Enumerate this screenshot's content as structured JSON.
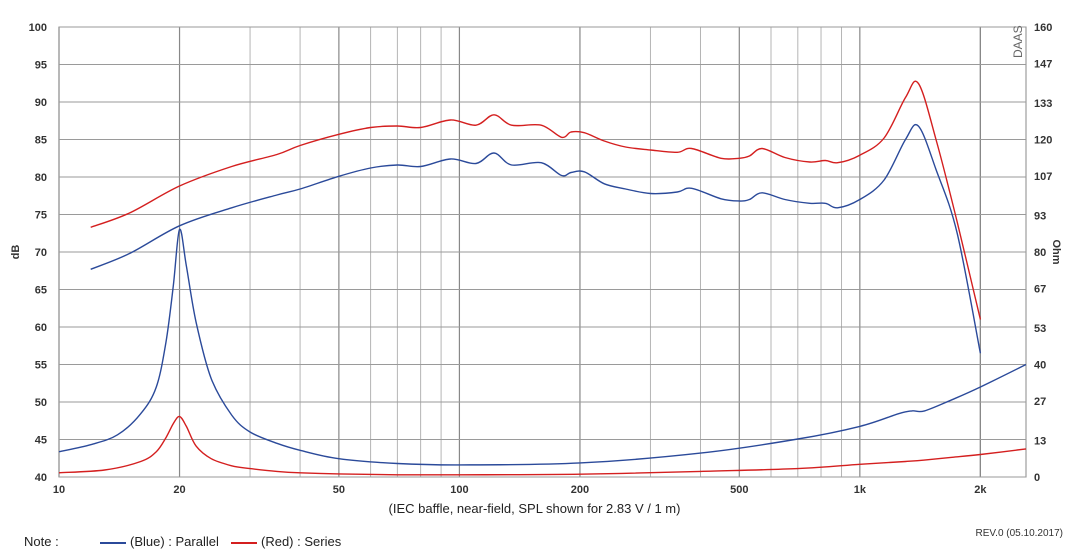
{
  "chart_data": {
    "type": "line",
    "xscale": "log",
    "xlim": [
      10,
      2600
    ],
    "ylim_left": [
      40,
      100
    ],
    "ylim_right": [
      0,
      160
    ],
    "ylabel_left": "dB",
    "ylabel_right": "Ohm",
    "grid": true,
    "watermark": "DAAS",
    "x_ticks": [
      {
        "value": 10,
        "label": "10"
      },
      {
        "value": 20,
        "label": "20"
      },
      {
        "value": 50,
        "label": "50"
      },
      {
        "value": 100,
        "label": "100"
      },
      {
        "value": 200,
        "label": "200"
      },
      {
        "value": 500,
        "label": "500"
      },
      {
        "value": 1000,
        "label": "1k"
      },
      {
        "value": 2000,
        "label": "2k"
      }
    ],
    "y_ticks_left": [
      "40",
      "45",
      "50",
      "55",
      "60",
      "65",
      "70",
      "75",
      "80",
      "85",
      "90",
      "95",
      "100"
    ],
    "y_ticks_right": [
      {
        "value": 0,
        "label": "0"
      },
      {
        "value": 13,
        "label": "13"
      },
      {
        "value": 27,
        "label": "27"
      },
      {
        "value": 40,
        "label": "40"
      },
      {
        "value": 53,
        "label": "53"
      },
      {
        "value": 67,
        "label": "67"
      },
      {
        "value": 80,
        "label": "80"
      },
      {
        "value": 93,
        "label": "93"
      },
      {
        "value": 107,
        "label": "107"
      },
      {
        "value": 120,
        "label": "120"
      },
      {
        "value": 133,
        "label": "133"
      },
      {
        "value": 147,
        "label": "147"
      },
      {
        "value": 160,
        "label": "160"
      }
    ],
    "series": [
      {
        "kind": "spl",
        "color": "#2b4a9a",
        "axis": "left",
        "x": [
          12,
          15,
          20,
          27,
          35,
          40,
          50,
          60,
          70,
          80,
          95,
          110,
          122,
          135,
          160,
          180,
          190,
          205,
          230,
          260,
          300,
          350,
          380,
          450,
          500,
          530,
          570,
          650,
          750,
          820,
          880,
          1000,
          1150,
          1300,
          1400,
          1550,
          1750,
          2000
        ],
        "y": [
          67.7,
          69.8,
          73.5,
          75.9,
          77.6,
          78.4,
          80.1,
          81.2,
          81.6,
          81.4,
          82.4,
          81.8,
          83.2,
          81.6,
          81.9,
          80.2,
          80.6,
          80.7,
          79.1,
          78.4,
          77.8,
          78.0,
          78.5,
          77.1,
          76.8,
          77.0,
          77.9,
          77.0,
          76.5,
          76.5,
          75.9,
          77.0,
          79.6,
          85.0,
          86.8,
          81.0,
          72.5,
          56.5
        ]
      },
      {
        "kind": "spl",
        "color": "#d41f1f",
        "axis": "left",
        "x": [
          12,
          15,
          20,
          27,
          35,
          40,
          50,
          60,
          70,
          80,
          95,
          110,
          122,
          135,
          160,
          180,
          190,
          205,
          230,
          260,
          300,
          350,
          380,
          450,
          500,
          530,
          570,
          650,
          750,
          820,
          880,
          1000,
          1150,
          1300,
          1400,
          1550,
          1750,
          2000
        ],
        "y": [
          73.3,
          75.2,
          78.8,
          81.4,
          83.0,
          84.2,
          85.7,
          86.6,
          86.8,
          86.6,
          87.6,
          86.9,
          88.3,
          86.9,
          86.9,
          85.3,
          86.0,
          85.9,
          84.8,
          84.0,
          83.6,
          83.3,
          83.8,
          82.5,
          82.5,
          82.8,
          83.8,
          82.6,
          82.0,
          82.2,
          81.9,
          82.9,
          85.2,
          90.6,
          92.5,
          85.0,
          74.0,
          61.0
        ]
      },
      {
        "kind": "impedance",
        "color": "#2b4a9a",
        "axis": "right",
        "x": [
          10,
          12,
          14,
          16,
          17.5,
          18.5,
          19.3,
          20,
          20.8,
          22,
          24,
          27,
          30,
          35,
          40,
          50,
          70,
          100,
          200,
          400,
          700,
          1000,
          1250,
          1350,
          1450,
          1700,
          2000,
          2600
        ],
        "y": [
          9,
          11.5,
          15,
          22.5,
          32,
          48,
          68,
          88,
          75,
          55,
          35,
          22,
          16,
          12,
          9.5,
          6.5,
          4.8,
          4.3,
          5,
          8.5,
          13.5,
          18,
          22.5,
          23.5,
          23.5,
          27.5,
          32,
          40
        ]
      },
      {
        "kind": "impedance",
        "color": "#d41f1f",
        "axis": "right",
        "x": [
          10,
          13,
          16,
          17.5,
          18.5,
          19.3,
          20,
          20.8,
          22,
          24,
          27,
          30,
          35,
          40,
          50,
          70,
          100,
          200,
          400,
          700,
          1000,
          1300,
          1450,
          1700,
          2000,
          2600
        ],
        "y": [
          1.5,
          2.5,
          5.5,
          9,
          14,
          19,
          21.5,
          18,
          11,
          6.5,
          4,
          3,
          2,
          1.5,
          1.1,
          0.8,
          0.8,
          1,
          2,
          3,
          4.5,
          5.5,
          6,
          7,
          8,
          10
        ]
      }
    ]
  },
  "caption": "(IEC baffle, near-field, SPL shown for 2.83 V / 1 m)",
  "note": {
    "label": "Note :",
    "blue_text": "(Blue)  : Parallel",
    "red_text": "(Red) : Series",
    "blue_color": "#2b4a9a",
    "red_color": "#d41f1f"
  },
  "revision": "REV.0 (05.10.2017)"
}
